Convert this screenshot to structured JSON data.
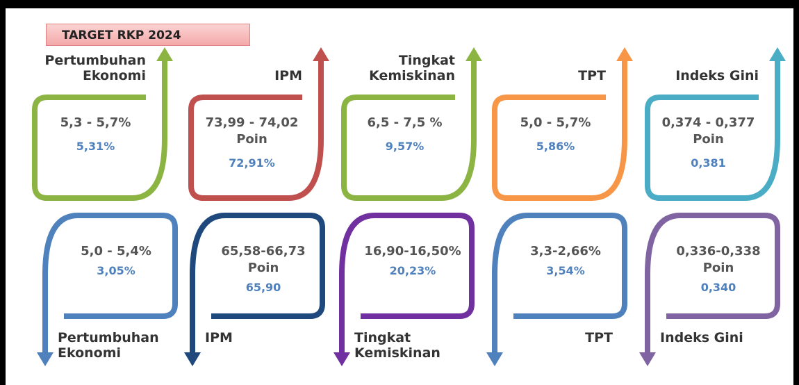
{
  "banner": "TARGET RKP 2024",
  "top_cards": [
    {
      "label": "Pertumbuhan Ekonomi",
      "target": "5,3 - 5,7%",
      "actual": "5,31%"
    },
    {
      "label": "IPM",
      "target": "73,99 - 74,02 Poin",
      "actual": "72,91%"
    },
    {
      "label": "Tingkat Kemiskinan",
      "target": "6,5 - 7,5 %",
      "actual": "9,57%"
    },
    {
      "label": "TPT",
      "target": "5,0 - 5,7%",
      "actual": "5,86%"
    },
    {
      "label": "Indeks Gini",
      "target": "0,374 - 0,377 Poin",
      "actual": "0,381"
    }
  ],
  "bottom_cards": [
    {
      "label": "Pertumbuhan Ekonomi",
      "target": "5,0 - 5,4%",
      "actual": "3,05%"
    },
    {
      "label": "IPM",
      "target": "65,58-66,73 Poin",
      "actual": "65,90"
    },
    {
      "label": "Tingkat Kemiskinan",
      "target": "16,90-16,50%",
      "actual": "20,23%"
    },
    {
      "label": "TPT",
      "target": "3,3-2,66%",
      "actual": "3,54%"
    },
    {
      "label": "Indeks Gini",
      "target": "0,336-0,338 Poin",
      "actual": "0,340"
    }
  ]
}
